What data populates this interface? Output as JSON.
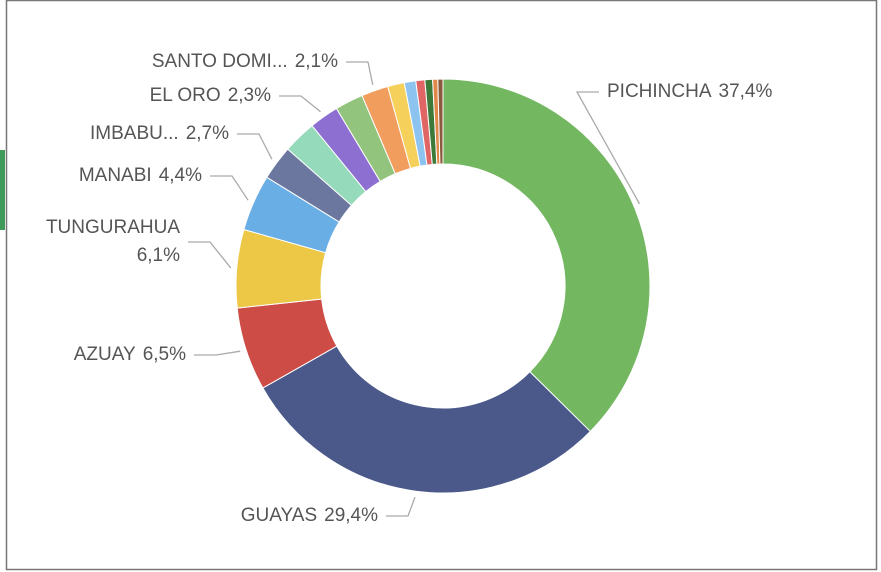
{
  "chart_data": {
    "type": "donut",
    "categories": [
      "PICHINCHA",
      "GUAYAS",
      "AZUAY",
      "TUNGURAHUA",
      "MANABI",
      "IMBABU...",
      null,
      "EL ORO",
      null,
      "SANTO DOMI...",
      null,
      null,
      null,
      null,
      null,
      null
    ],
    "values": [
      37.4,
      29.4,
      6.5,
      6.1,
      4.4,
      2.7,
      2.6,
      2.3,
      2.2,
      2.1,
      1.3,
      0.9,
      0.7,
      0.6,
      0.4,
      0.4
    ],
    "value_labels": [
      "37,4%",
      "29,4%",
      "6,5%",
      "6,1%",
      "4,4%",
      "2,7%",
      null,
      "2,3%",
      null,
      "2,1%",
      null,
      null,
      null,
      null,
      null,
      null
    ],
    "colors": [
      "#73b761",
      "#4a588a",
      "#cd4c46",
      "#ecc846",
      "#6aaee6",
      "#6b779f",
      "#95dabb",
      "#8d6fd1",
      "#93c47d",
      "#f19d5e",
      "#f5d05b",
      "#8cc4ef",
      "#e06666",
      "#3d7a3a",
      "#e0884a",
      "#8b5a3c"
    ]
  }
}
